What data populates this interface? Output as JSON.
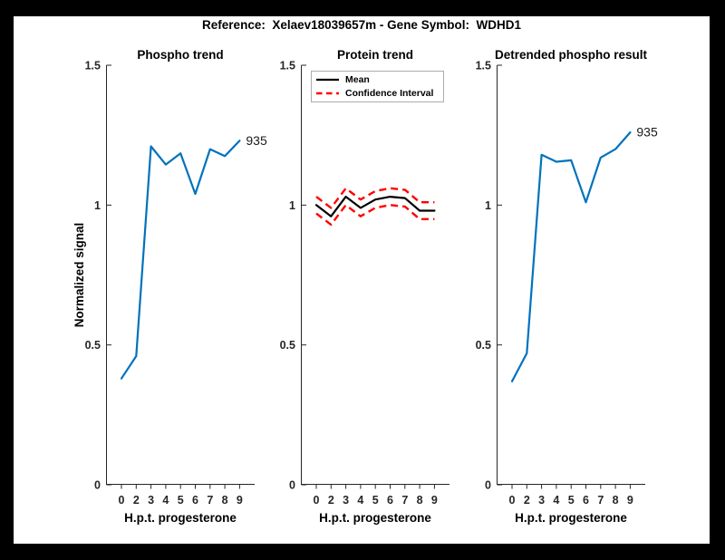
{
  "figure": {
    "title": "Reference:  Xelaev18039657m - Gene Symbol:  WDHD1",
    "background_color": "#000000",
    "canvas_color": "#ffffff"
  },
  "colors": {
    "series_blue": "#0072BD",
    "ci_red": "#FF0000",
    "mean_black": "#000000",
    "axis_gray": "#262626"
  },
  "chart_data": [
    {
      "type": "line",
      "title": "Phospho trend",
      "xlabel": "H.p.t. progesterone",
      "ylabel": "Normalized signal",
      "categories": [
        "0",
        "2",
        "3",
        "4",
        "5",
        "6",
        "7",
        "8",
        "9"
      ],
      "ylim": [
        0,
        1.5
      ],
      "yticks": [
        "0",
        "0.5",
        "1",
        "1.5"
      ],
      "grid": false,
      "legend_position": "none",
      "series": [
        {
          "name": "935",
          "color": "#0072BD",
          "style": "solid",
          "end_label": "935",
          "values": [
            0.38,
            0.46,
            1.21,
            1.145,
            1.185,
            1.04,
            1.2,
            1.175,
            1.23
          ]
        }
      ]
    },
    {
      "type": "line",
      "title": "Protein trend",
      "xlabel": "H.p.t. progesterone",
      "ylabel": "",
      "categories": [
        "0",
        "2",
        "3",
        "4",
        "5",
        "6",
        "7",
        "8",
        "9"
      ],
      "ylim": [
        0,
        1.5
      ],
      "yticks": [
        "0",
        "0.5",
        "1",
        "1.5"
      ],
      "grid": false,
      "legend_position": "top-left",
      "legend_items": [
        {
          "label": "Mean",
          "color": "#000000",
          "style": "solid"
        },
        {
          "label": "Confidence Interval",
          "color": "#FF0000",
          "style": "dashed"
        }
      ],
      "series": [
        {
          "name": "Mean",
          "color": "#000000",
          "style": "solid",
          "values": [
            1.0,
            0.96,
            1.03,
            0.99,
            1.02,
            1.03,
            1.025,
            0.98,
            0.98
          ]
        },
        {
          "name": "Confidence Interval upper",
          "color": "#FF0000",
          "style": "dashed",
          "values": [
            1.03,
            0.99,
            1.06,
            1.02,
            1.05,
            1.06,
            1.055,
            1.01,
            1.01
          ]
        },
        {
          "name": "Confidence Interval lower",
          "color": "#FF0000",
          "style": "dashed",
          "values": [
            0.97,
            0.93,
            1.0,
            0.96,
            0.99,
            1.0,
            0.995,
            0.95,
            0.95
          ]
        }
      ]
    },
    {
      "type": "line",
      "title": "Detrended phospho result",
      "xlabel": "H.p.t. progesterone",
      "ylabel": "",
      "categories": [
        "0",
        "2",
        "3",
        "4",
        "5",
        "6",
        "7",
        "8",
        "9"
      ],
      "ylim": [
        0,
        1.5
      ],
      "yticks": [
        "0",
        "0.5",
        "1",
        "1.5"
      ],
      "grid": false,
      "legend_position": "none",
      "series": [
        {
          "name": "935",
          "color": "#0072BD",
          "style": "solid",
          "end_label": "935",
          "values": [
            0.37,
            0.47,
            1.18,
            1.155,
            1.16,
            1.01,
            1.17,
            1.2,
            1.26
          ]
        }
      ]
    }
  ]
}
